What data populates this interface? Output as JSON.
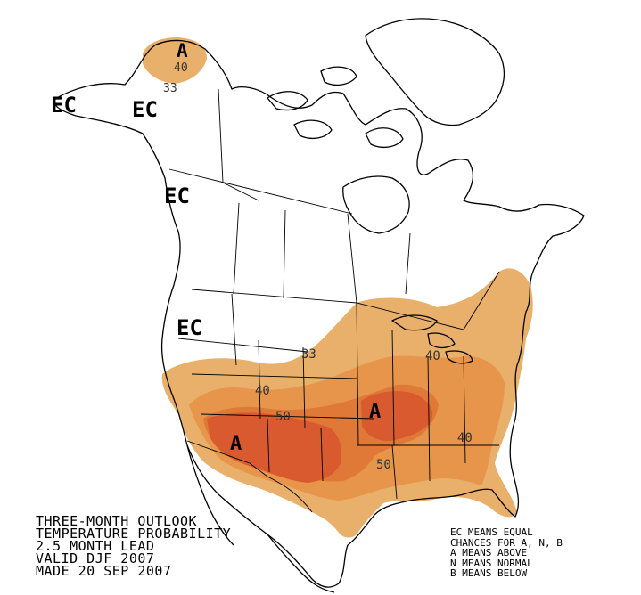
{
  "map": {
    "region_labels": {
      "alaska_above": "A",
      "alaska_west_ec": "EC",
      "alaska_east_ec": "EC",
      "bc_ec": "EC",
      "oregon_ec": "EC",
      "southwest_above": "A",
      "midsouth_above": "A"
    },
    "contour_labels": {
      "alaska_40": "40",
      "alaska_33": "33",
      "plains_33": "33",
      "ohio_40": "40",
      "rockies_40": "40",
      "plains_50": "50",
      "texas_50": "50",
      "southeast_40": "40"
    },
    "colors": {
      "p33": "#e8b06a",
      "p40": "#e6954a",
      "p50": "#e07838",
      "p60": "#d85a2e"
    }
  },
  "caption": {
    "line1": "THREE-MONTH OUTLOOK",
    "line2": "TEMPERATURE PROBABILITY",
    "line3": "2.5 MONTH LEAD",
    "line4": "VALID DJF 2007",
    "line5": "MADE 20 SEP 2007"
  },
  "legend": {
    "line1": "EC MEANS EQUAL",
    "line2": "CHANCES FOR A, N, B",
    "line3": "A MEANS ABOVE",
    "line4": "N MEANS NORMAL",
    "line5": "B MEANS BELOW"
  }
}
